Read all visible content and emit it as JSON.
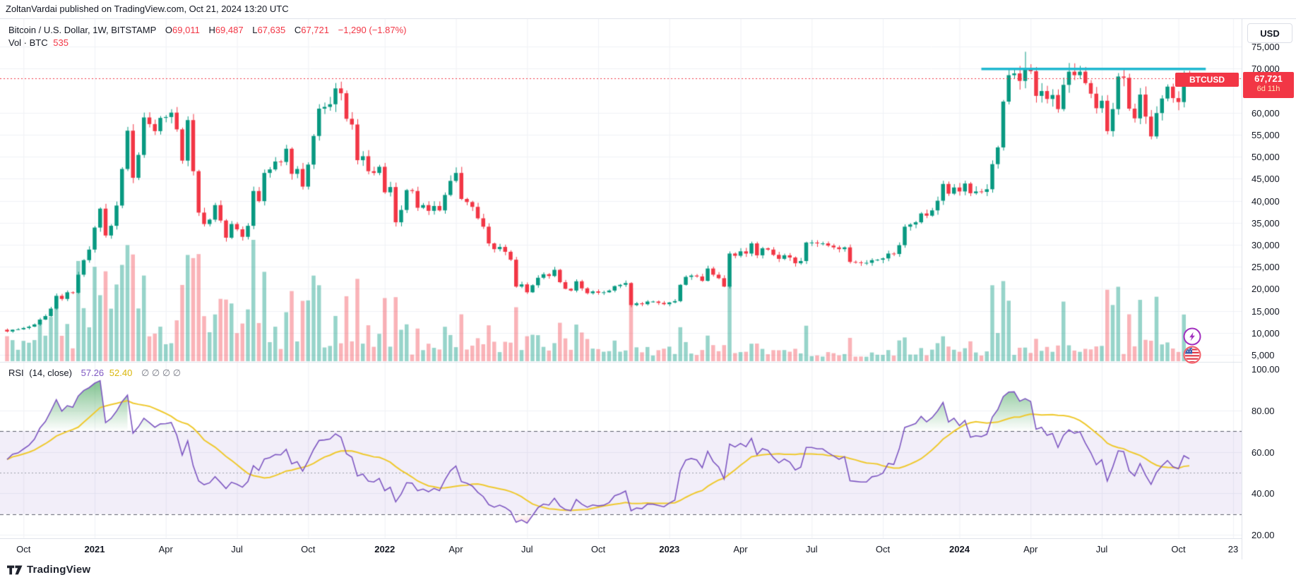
{
  "attribution": {
    "text": "ZoltanVardai published on TradingView.com, Oct 21, 2024 13:20 UTC"
  },
  "header": {
    "symbol_line": "Bitcoin / U.S. Dollar, 1W, BITSTAMP",
    "ohlc": [
      {
        "k": "O",
        "v": "69,011"
      },
      {
        "k": "H",
        "v": "69,487"
      },
      {
        "k": "L",
        "v": "67,635"
      },
      {
        "k": "C",
        "v": "67,721"
      }
    ],
    "change": "−1,290 (−1.87%)",
    "vol_label": "Vol · BTC",
    "vol_value": "535"
  },
  "price_scale": {
    "currency": "USD",
    "ticker_tag": "BTCUSD",
    "last_price": "67,721",
    "countdown": "6d 11h",
    "ticks": [
      {
        "t": "75,000",
        "v": 75000
      },
      {
        "t": "70,000",
        "v": 70000
      },
      {
        "t": "60,000",
        "v": 60000
      },
      {
        "t": "55,000",
        "v": 55000
      },
      {
        "t": "50,000",
        "v": 50000
      },
      {
        "t": "45,000",
        "v": 45000
      },
      {
        "t": "40,000",
        "v": 40000
      },
      {
        "t": "35,000",
        "v": 35000
      },
      {
        "t": "30,000",
        "v": 30000
      },
      {
        "t": "25,000",
        "v": 25000
      },
      {
        "t": "20,000",
        "v": 20000
      },
      {
        "t": "15,000",
        "v": 15000
      },
      {
        "t": "10,000",
        "v": 10000
      },
      {
        "t": "5,000",
        "v": 5000
      }
    ]
  },
  "rsi_panel": {
    "title": "RSI",
    "params": "(14, close)",
    "value": "57.26",
    "ma_value": "52.40",
    "hidden_markers": "∅  ∅  ∅  ∅",
    "ticks": [
      {
        "t": "100.00",
        "v": 100
      },
      {
        "t": "80.00",
        "v": 80
      },
      {
        "t": "60.00",
        "v": 60
      },
      {
        "t": "40.00",
        "v": 40
      },
      {
        "t": "20.00",
        "v": 20
      }
    ],
    "levels": {
      "overbought": 70,
      "middle": 50,
      "oversold": 30
    }
  },
  "time_axis": {
    "labels": [
      {
        "text": "Oct",
        "week": 3,
        "bold": false
      },
      {
        "text": "2021",
        "week": 16,
        "bold": true
      },
      {
        "text": "Apr",
        "week": 29,
        "bold": false
      },
      {
        "text": "Jul",
        "week": 42,
        "bold": false
      },
      {
        "text": "Oct",
        "week": 55,
        "bold": false
      },
      {
        "text": "2022",
        "week": 69,
        "bold": true
      },
      {
        "text": "Apr",
        "week": 82,
        "bold": false
      },
      {
        "text": "Jul",
        "week": 95,
        "bold": false
      },
      {
        "text": "Oct",
        "week": 108,
        "bold": false
      },
      {
        "text": "2023",
        "week": 121,
        "bold": true
      },
      {
        "text": "Apr",
        "week": 134,
        "bold": false
      },
      {
        "text": "Jul",
        "week": 147,
        "bold": false
      },
      {
        "text": "Oct",
        "week": 160,
        "bold": false
      },
      {
        "text": "2024",
        "week": 174,
        "bold": true
      },
      {
        "text": "Apr",
        "week": 187,
        "bold": false
      },
      {
        "text": "Jul",
        "week": 200,
        "bold": false
      },
      {
        "text": "Oct",
        "week": 214,
        "bold": false
      },
      {
        "text": "23",
        "week": 224,
        "bold": false
      }
    ]
  },
  "footer": {
    "brand": "TradingView"
  },
  "colors": {
    "up": "#089981",
    "down": "#F23645",
    "volume_up": "rgba(8,153,129,0.42)",
    "volume_down": "rgba(242,54,69,0.38)",
    "grid": "#F0F2F6",
    "separator": "#E0E3EB",
    "rsi_line": "#7E57C2",
    "rsi_ma": "#EFC92E",
    "band_fill": "rgba(126,87,194,0.10)",
    "overbought_fill": "rgba(46,155,71,0.55)",
    "oversold_fill": "rgba(242,54,69,0.30)",
    "level_dash": "#5A5E6B",
    "mid_dash": "#9B9EA8",
    "resistance": "#1FB8D0",
    "last_price_line": "#F23645",
    "tag_bg": "#F23645"
  },
  "chart_data": {
    "type": "candlestick",
    "symbol": "BTCUSD",
    "exchange": "BITSTAMP",
    "interval": "1W",
    "title": "Bitcoin / U.S. Dollar weekly with volume and RSI(14)",
    "price_axis_range": [
      5000,
      75000
    ],
    "rsi_axis_range": [
      20,
      100
    ],
    "current_bar": {
      "open": 69011,
      "high": 69487,
      "low": 67635,
      "close": 67721,
      "change": -1290,
      "change_pct": -1.87,
      "volume_btc": 535
    },
    "resistance_line": {
      "price_k": 69.9,
      "from_week": 178,
      "to_week": 219
    },
    "last_price_line": 67721,
    "rsi_current": 57.26,
    "rsi_ma_current": 52.4,
    "pre_window_closes_usd_k": [
      9.4,
      9.1,
      9.2,
      9.5,
      10.2,
      11.1,
      11.8,
      11.1,
      11.5,
      11.9,
      11.4,
      10.5,
      10.2,
      10.7
    ],
    "weekly_closes_usd_k": [
      10.3,
      10.7,
      10.8,
      11.1,
      11.4,
      11.9,
      13.0,
      13.8,
      15.5,
      18.4,
      17.7,
      19.2,
      19.1,
      23.2,
      26.5,
      28.9,
      33.9,
      38.2,
      32.1,
      34.3,
      38.9,
      47.2,
      55.9,
      45.2,
      50.4,
      58.9,
      57.4,
      55.8,
      58.8,
      59.0,
      60.0,
      56.2,
      49.1,
      58.3,
      46.7,
      37.3,
      34.7,
      35.7,
      39.0,
      35.5,
      31.6,
      34.7,
      33.5,
      31.8,
      34.3,
      42.2,
      39.9,
      46.3,
      47.1,
      48.9,
      48.8,
      51.8,
      46.1,
      47.2,
      43.2,
      48.2,
      54.7,
      60.9,
      61.3,
      61.9,
      65.5,
      64.4,
      58.6,
      57.3,
      49.2,
      50.1,
      46.7,
      46.3,
      47.7,
      41.9,
      43.1,
      35.1,
      37.9,
      42.4,
      42.2,
      38.4,
      39.0,
      37.7,
      38.8,
      37.8,
      41.3,
      44.5,
      46.3,
      40.4,
      39.7,
      38.6,
      36.0,
      34.1,
      30.3,
      29.0,
      29.5,
      28.4,
      26.6,
      20.5,
      21.0,
      19.2,
      20.8,
      22.5,
      23.3,
      22.9,
      24.3,
      21.5,
      20.0,
      19.6,
      21.7,
      20.1,
      19.0,
      19.4,
      19.1,
      19.2,
      19.6,
      20.6,
      20.9,
      21.3,
      16.3,
      16.7,
      16.5,
      17.1,
      17.1,
      16.8,
      16.5,
      16.9,
      17.2,
      20.9,
      22.7,
      23.0,
      22.8,
      21.8,
      24.6,
      23.2,
      22.4,
      20.5,
      28.0,
      27.5,
      28.5,
      28.0,
      30.3,
      27.6,
      29.2,
      28.9,
      27.7,
      26.8,
      27.6,
      27.1,
      25.8,
      26.3,
      30.5,
      30.5,
      30.3,
      30.3,
      29.8,
      29.4,
      29.0,
      29.4,
      26.1,
      26.0,
      25.9,
      25.9,
      26.5,
      26.6,
      26.9,
      28.0,
      27.9,
      29.9,
      34.1,
      34.6,
      35.1,
      37.1,
      36.6,
      37.8,
      40.0,
      43.8,
      41.6,
      43.0,
      42.1,
      43.9,
      41.7,
      42.1,
      42.0,
      42.6,
      48.3,
      52.1,
      62.5,
      68.5,
      68.9,
      67.2,
      69.9,
      69.4,
      63.8,
      64.9,
      63.1,
      64.0,
      60.8,
      66.3,
      69.3,
      68.5,
      69.3,
      66.7,
      64.3,
      61.0,
      62.7,
      55.8,
      60.8,
      68.2,
      67.9,
      60.9,
      58.7,
      64.1,
      59.1,
      54.6,
      59.9,
      63.2,
      65.9,
      63.3,
      62.4,
      68.9,
      67.7
    ]
  }
}
